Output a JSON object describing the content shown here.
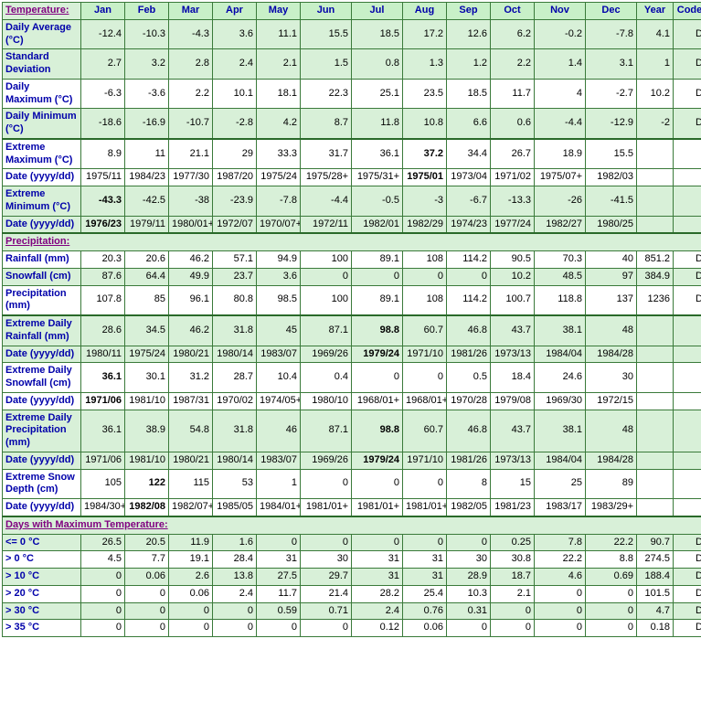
{
  "columns": [
    "Jan",
    "Feb",
    "Mar",
    "Apr",
    "May",
    "Jun",
    "Jul",
    "Aug",
    "Sep",
    "Oct",
    "Nov",
    "Dec",
    "Year",
    "Code"
  ],
  "sections": [
    {
      "title": "Temperature:",
      "rows": [
        {
          "label": "Daily Average (°C)",
          "band": 0,
          "cells": [
            "-12.4",
            "-10.3",
            "-4.3",
            "3.6",
            "11.1",
            "15.5",
            "18.5",
            "17.2",
            "12.6",
            "6.2",
            "-0.2",
            "-7.8",
            "4.1",
            "D"
          ]
        },
        {
          "label": "Standard Deviation",
          "band": 0,
          "cells": [
            "2.7",
            "3.2",
            "2.8",
            "2.4",
            "2.1",
            "1.5",
            "0.8",
            "1.3",
            "1.2",
            "2.2",
            "1.4",
            "3.1",
            "1",
            "D"
          ]
        },
        {
          "label": "Daily Maximum (°C)",
          "band": 1,
          "cells": [
            "-6.3",
            "-3.6",
            "2.2",
            "10.1",
            "18.1",
            "22.3",
            "25.1",
            "23.5",
            "18.5",
            "11.7",
            "4",
            "-2.7",
            "10.2",
            "D"
          ]
        },
        {
          "label": "Daily Minimum (°C)",
          "band": 0,
          "cells": [
            "-18.6",
            "-16.9",
            "-10.7",
            "-2.8",
            "4.2",
            "8.7",
            "11.8",
            "10.8",
            "6.6",
            "0.6",
            "-4.4",
            "-12.9",
            "-2",
            "D"
          ]
        },
        {
          "label": "Extreme Maximum (°C)",
          "band": 1,
          "sep": true,
          "cells": [
            "8.9",
            "11",
            "21.1",
            "29",
            "33.3",
            "31.7",
            "36.1",
            "37.2",
            "34.4",
            "26.7",
            "18.9",
            "15.5",
            "",
            ""
          ],
          "bold": [
            7
          ]
        },
        {
          "label": "Date (yyyy/dd)",
          "band": 1,
          "cells": [
            "1975/11",
            "1984/23",
            "1977/30",
            "1987/20",
            "1975/24",
            "1975/28+",
            "1975/31+",
            "1975/01",
            "1973/04",
            "1971/02",
            "1975/07+",
            "1982/03",
            "",
            ""
          ],
          "bold": [
            7
          ]
        },
        {
          "label": "Extreme Minimum (°C)",
          "band": 0,
          "cells": [
            "-43.3",
            "-42.5",
            "-38",
            "-23.9",
            "-7.8",
            "-4.4",
            "-0.5",
            "-3",
            "-6.7",
            "-13.3",
            "-26",
            "-41.5",
            "",
            ""
          ],
          "bold": [
            0
          ]
        },
        {
          "label": "Date (yyyy/dd)",
          "band": 0,
          "cells": [
            "1976/23",
            "1979/11",
            "1980/01+",
            "1972/07",
            "1970/07+",
            "1972/11",
            "1982/01",
            "1982/29",
            "1974/23",
            "1977/24",
            "1982/27",
            "1980/25",
            "",
            ""
          ],
          "bold": [
            0
          ]
        }
      ]
    },
    {
      "title": "Precipitation:",
      "rows": [
        {
          "label": "Rainfall (mm)",
          "band": 1,
          "cells": [
            "20.3",
            "20.6",
            "46.2",
            "57.1",
            "94.9",
            "100",
            "89.1",
            "108",
            "114.2",
            "90.5",
            "70.3",
            "40",
            "851.2",
            "D"
          ]
        },
        {
          "label": "Snowfall (cm)",
          "band": 0,
          "cells": [
            "87.6",
            "64.4",
            "49.9",
            "23.7",
            "3.6",
            "0",
            "0",
            "0",
            "0",
            "10.2",
            "48.5",
            "97",
            "384.9",
            "D"
          ]
        },
        {
          "label": "Precipitation (mm)",
          "band": 1,
          "cells": [
            "107.8",
            "85",
            "96.1",
            "80.8",
            "98.5",
            "100",
            "89.1",
            "108",
            "114.2",
            "100.7",
            "118.8",
            "137",
            "1236",
            "D"
          ]
        },
        {
          "label": "Extreme Daily Rainfall (mm)",
          "band": 0,
          "sep": true,
          "cells": [
            "28.6",
            "34.5",
            "46.2",
            "31.8",
            "45",
            "87.1",
            "98.8",
            "60.7",
            "46.8",
            "43.7",
            "38.1",
            "48",
            "",
            ""
          ],
          "bold": [
            6
          ]
        },
        {
          "label": "Date (yyyy/dd)",
          "band": 0,
          "cells": [
            "1980/11",
            "1975/24",
            "1980/21",
            "1980/14",
            "1983/07",
            "1969/26",
            "1979/24",
            "1971/10",
            "1981/26",
            "1973/13",
            "1984/04",
            "1984/28",
            "",
            ""
          ],
          "bold": [
            6
          ]
        },
        {
          "label": "Extreme Daily Snowfall (cm)",
          "band": 1,
          "cells": [
            "36.1",
            "30.1",
            "31.2",
            "28.7",
            "10.4",
            "0.4",
            "0",
            "0",
            "0.5",
            "18.4",
            "24.6",
            "30",
            "",
            ""
          ],
          "bold": [
            0
          ]
        },
        {
          "label": "Date (yyyy/dd)",
          "band": 1,
          "cells": [
            "1971/06",
            "1981/10",
            "1987/31",
            "1970/02",
            "1974/05+",
            "1980/10",
            "1968/01+",
            "1968/01+",
            "1970/28",
            "1979/08",
            "1969/30",
            "1972/15",
            "",
            ""
          ],
          "bold": [
            0
          ]
        },
        {
          "label": "Extreme Daily Precipitation (mm)",
          "band": 0,
          "cells": [
            "36.1",
            "38.9",
            "54.8",
            "31.8",
            "46",
            "87.1",
            "98.8",
            "60.7",
            "46.8",
            "43.7",
            "38.1",
            "48",
            "",
            ""
          ],
          "bold": [
            6
          ]
        },
        {
          "label": "Date (yyyy/dd)",
          "band": 0,
          "cells": [
            "1971/06",
            "1981/10",
            "1980/21",
            "1980/14",
            "1983/07",
            "1969/26",
            "1979/24",
            "1971/10",
            "1981/26",
            "1973/13",
            "1984/04",
            "1984/28",
            "",
            ""
          ],
          "bold": [
            6
          ]
        },
        {
          "label": "Extreme Snow Depth (cm)",
          "band": 1,
          "cells": [
            "105",
            "122",
            "115",
            "53",
            "1",
            "0",
            "0",
            "0",
            "8",
            "15",
            "25",
            "89",
            "",
            ""
          ],
          "bold": [
            1
          ]
        },
        {
          "label": "Date (yyyy/dd)",
          "band": 1,
          "cells": [
            "1984/30+",
            "1982/08",
            "1982/07+",
            "1985/05",
            "1984/01+",
            "1981/01+",
            "1981/01+",
            "1981/01+",
            "1982/05",
            "1981/23",
            "1983/17",
            "1983/29+",
            "",
            ""
          ],
          "bold": [
            1
          ]
        }
      ]
    },
    {
      "title": "Days with Maximum Temperature:",
      "rows": [
        {
          "label": "<= 0 °C",
          "band": 0,
          "cells": [
            "26.5",
            "20.5",
            "11.9",
            "1.6",
            "0",
            "0",
            "0",
            "0",
            "0",
            "0.25",
            "7.8",
            "22.2",
            "90.7",
            "D"
          ]
        },
        {
          "label": "> 0 °C",
          "band": 1,
          "cells": [
            "4.5",
            "7.7",
            "19.1",
            "28.4",
            "31",
            "30",
            "31",
            "31",
            "30",
            "30.8",
            "22.2",
            "8.8",
            "274.5",
            "D"
          ]
        },
        {
          "label": "> 10 °C",
          "band": 0,
          "cells": [
            "0",
            "0.06",
            "2.6",
            "13.8",
            "27.5",
            "29.7",
            "31",
            "31",
            "28.9",
            "18.7",
            "4.6",
            "0.69",
            "188.4",
            "D"
          ]
        },
        {
          "label": "> 20 °C",
          "band": 1,
          "cells": [
            "0",
            "0",
            "0.06",
            "2.4",
            "11.7",
            "21.4",
            "28.2",
            "25.4",
            "10.3",
            "2.1",
            "0",
            "0",
            "101.5",
            "D"
          ]
        },
        {
          "label": "> 30 °C",
          "band": 0,
          "cells": [
            "0",
            "0",
            "0",
            "0",
            "0.59",
            "0.71",
            "2.4",
            "0.76",
            "0.31",
            "0",
            "0",
            "0",
            "4.7",
            "D"
          ]
        },
        {
          "label": "> 35 °C",
          "band": 1,
          "cells": [
            "0",
            "0",
            "0",
            "0",
            "0",
            "0",
            "0.12",
            "0.06",
            "0",
            "0",
            "0",
            "0",
            "0.18",
            "D"
          ]
        }
      ]
    }
  ],
  "colors": {
    "header_bg": "#c8f0c8",
    "band0_bg": "#d8f0d8",
    "band1_bg": "#ffffff",
    "border": "#3a7a3a",
    "label_fg": "#0000aa",
    "section_fg": "#800080"
  }
}
